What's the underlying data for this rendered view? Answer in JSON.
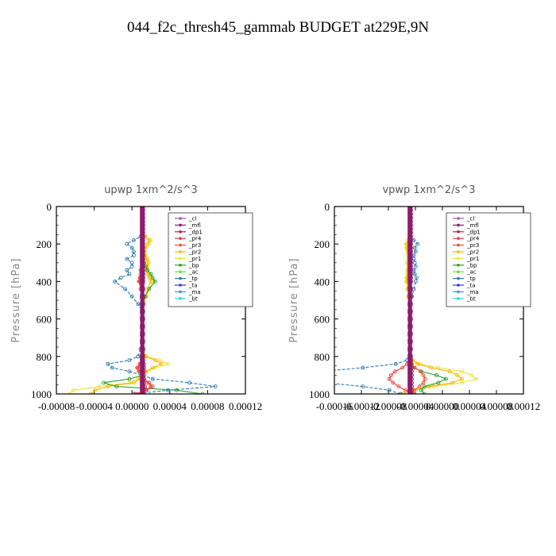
{
  "figure": {
    "title": "044_f2c_thresh45_gammab  BUDGET at229E,9N"
  },
  "series_styles": [
    {
      "name": "_cl",
      "color": "#9b59b6"
    },
    {
      "name": "_mfl",
      "color": "#8e1b6e"
    },
    {
      "name": "_dp1",
      "color": "#b0204a"
    },
    {
      "name": "_pr4",
      "color": "#e8404a"
    },
    {
      "name": "_pr3",
      "color": "#f05030"
    },
    {
      "name": "_pr2",
      "color": "#f5b800"
    },
    {
      "name": "_pr1",
      "color": "#f0e040"
    },
    {
      "name": "_bp",
      "color": "#2ca02c"
    },
    {
      "name": "_ac",
      "color": "#66dd44"
    },
    {
      "name": "_tp",
      "color": "#2a7ab0"
    },
    {
      "name": "_ta",
      "color": "#3a3ad0"
    },
    {
      "name": "_ma",
      "color": "#4a90c0"
    },
    {
      "name": "_bt",
      "color": "#22dddd"
    }
  ],
  "chart_data": [
    {
      "type": "line",
      "title": "upwp   1xm^2/s^3",
      "ylabel": "Pressure [hPa]",
      "xlabel": "",
      "ylim": [
        1000,
        0
      ],
      "xlim": [
        -0.0001,
        0.00012
      ],
      "yticks": [
        "0",
        "200",
        "400",
        "600",
        "800",
        "1000"
      ],
      "xticks": [
        "-0.00008",
        "-0.00004",
        "0.00000",
        "0.00004",
        "0.00008",
        "0.00012"
      ],
      "legend_position": "top-right",
      "y": [
        1000,
        980,
        960,
        940,
        920,
        900,
        880,
        860,
        840,
        820,
        800,
        760,
        720,
        680,
        640,
        600,
        560,
        520,
        480,
        440,
        400,
        380,
        360,
        340,
        320,
        300,
        280,
        260,
        240,
        220,
        200,
        180,
        160,
        140,
        120,
        100,
        80,
        60,
        40,
        20,
        0
      ],
      "series": [
        {
          "name": "_pr1",
          "values": [
            -8.5e-05,
            -8e-05,
            -5e-05,
            -1.5e-05,
            -5e-06,
            0.0,
            5e-06,
            1.5e-05,
            3e-05,
            2e-05,
            5e-06,
            2e-06,
            0.0,
            0.0,
            0.0,
            0.0,
            0.0,
            2e-06,
            5e-06,
            8e-06,
            1.2e-05,
            1e-05,
            8e-06,
            6e-06,
            6e-06,
            8e-06,
            6e-06,
            4e-06,
            3e-06,
            4e-06,
            8e-06,
            1e-05,
            4e-06,
            0.0,
            0.0,
            0.0,
            0.0,
            0.0,
            0.0,
            0.0,
            0.0
          ]
        },
        {
          "name": "_pr2",
          "values": [
            -6e-05,
            -5.5e-05,
            -4e-05,
            -1e-05,
            -3e-06,
            0.0,
            4e-06,
            1.2e-05,
            2.2e-05,
            1.5e-05,
            4e-06,
            0.0,
            0.0,
            0.0,
            0.0,
            0.0,
            0.0,
            0.0,
            4e-06,
            6e-06,
            1e-05,
            8e-06,
            6e-06,
            5e-06,
            5e-06,
            6e-06,
            5e-06,
            3e-06,
            2e-06,
            3e-06,
            6e-06,
            8e-06,
            3e-06,
            0.0,
            0.0,
            0.0,
            0.0,
            0.0,
            0.0,
            0.0,
            0.0
          ]
        },
        {
          "name": "_bp",
          "values": [
            7e-05,
            4e-05,
            -3e-05,
            -4.5e-05,
            -1.5e-05,
            0.0,
            0.0,
            0.0,
            0.0,
            0.0,
            0.0,
            0.0,
            0.0,
            0.0,
            0.0,
            0.0,
            0.0,
            0.0,
            3e-06,
            8e-06,
            1.5e-05,
            1.2e-05,
            1e-05,
            6e-06,
            4e-06,
            2e-06,
            0.0,
            0.0,
            0.0,
            0.0,
            0.0,
            0.0,
            0.0,
            0.0,
            0.0,
            0.0,
            0.0,
            0.0,
            0.0,
            0.0,
            0.0
          ]
        },
        {
          "name": "_tp",
          "values": [
            -1e-05,
            3e-05,
            8.5e-05,
            5.5e-05,
            1.2e-05,
            0.0,
            -1.5e-05,
            -3.5e-05,
            -4e-05,
            -1.5e-05,
            -5e-06,
            -2e-06,
            0.0,
            0.0,
            0.0,
            0.0,
            0.0,
            -5e-06,
            -1.2e-05,
            -2e-05,
            -3.2e-05,
            -2.5e-05,
            -1.5e-05,
            -1.8e-05,
            -1.2e-05,
            -1.2e-05,
            -1.8e-05,
            -1e-05,
            -1e-05,
            -1.2e-05,
            -1.8e-05,
            -1e-05,
            -2e-06,
            0.0,
            0.0,
            0.0,
            0.0,
            0.0,
            0.0,
            0.0,
            0.0
          ]
        },
        {
          "name": "_pr4",
          "values": [
            -8e-06,
            5e-06,
            1.2e-05,
            8e-06,
            2e-06,
            0.0,
            -4e-06,
            -6e-06,
            -3e-06,
            0.0,
            0.0,
            0.0,
            0.0,
            0.0,
            0.0,
            0.0,
            0.0,
            0.0,
            0.0,
            -2e-06,
            -4e-06,
            -3e-06,
            -2e-06,
            -2e-06,
            0.0,
            0.0,
            0.0,
            0.0,
            0.0,
            0.0,
            0.0,
            0.0,
            0.0,
            0.0,
            0.0,
            0.0,
            0.0,
            0.0,
            0.0,
            0.0,
            0.0
          ]
        },
        {
          "name": "_pr3",
          "values": [
            -6e-06,
            4e-06,
            1e-05,
            6e-06,
            2e-06,
            0.0,
            -3e-06,
            -5e-06,
            -2e-06,
            0.0,
            0.0,
            0.0,
            0.0,
            0.0,
            0.0,
            0.0,
            0.0,
            0.0,
            0.0,
            -2e-06,
            -3e-06,
            -2e-06,
            -2e-06,
            -1e-06,
            0.0,
            0.0,
            0.0,
            0.0,
            0.0,
            0.0,
            0.0,
            0.0,
            0.0,
            0.0,
            0.0,
            0.0,
            0.0,
            0.0,
            0.0,
            0.0,
            0.0
          ]
        },
        {
          "name": "_dp1",
          "values": [
            2e-06,
            2e-06,
            3e-06,
            2e-06,
            2e-06,
            2e-06,
            2e-06,
            2e-06,
            2e-06,
            1e-06,
            1e-06,
            1e-06,
            1e-06,
            1e-06,
            1e-06,
            1e-06,
            1e-06,
            1e-06,
            1e-06,
            1e-06,
            1e-06,
            1e-06,
            1e-06,
            1e-06,
            1e-06,
            1e-06,
            1e-06,
            1e-06,
            1e-06,
            1e-06,
            1e-06,
            1e-06,
            1e-06,
            1e-06,
            1e-06,
            1e-06,
            1e-06,
            1e-06,
            1e-06,
            1e-06,
            1e-06
          ]
        },
        {
          "name": "_mfl",
          "values": [
            0.0,
            0.0,
            0.0,
            0.0,
            0.0,
            0.0,
            0.0,
            0.0,
            0.0,
            0.0,
            0.0,
            0.0,
            0.0,
            0.0,
            0.0,
            0.0,
            0.0,
            0.0,
            0.0,
            0.0,
            0.0,
            0.0,
            0.0,
            0.0,
            0.0,
            0.0,
            0.0,
            0.0,
            0.0,
            0.0,
            0.0,
            0.0,
            0.0,
            0.0,
            0.0,
            0.0,
            0.0,
            0.0,
            0.0,
            0.0,
            0.0
          ]
        }
      ]
    },
    {
      "type": "line",
      "title": "vpwp   1xm^2/s^3",
      "ylabel": "Pressure [hPa]",
      "xlabel": "",
      "ylim": [
        1000,
        0
      ],
      "xlim": [
        -8e-05,
        0.00012
      ],
      "yticks": [
        "0",
        "200",
        "400",
        "600",
        "800",
        "1000"
      ],
      "xticks": [
        "-0.00016",
        "-0.00012",
        "-0.00008",
        "-0.00004",
        "0.00000",
        "0.00004",
        "0.00008",
        "0.00012"
      ],
      "legend_position": "top-right",
      "y": [
        1000,
        980,
        960,
        940,
        920,
        900,
        880,
        860,
        840,
        820,
        800,
        760,
        720,
        680,
        640,
        600,
        560,
        520,
        480,
        440,
        400,
        380,
        360,
        340,
        320,
        300,
        280,
        260,
        240,
        220,
        200,
        180,
        160,
        140,
        120,
        100,
        80,
        60,
        40,
        20,
        0
      ],
      "series": [
        {
          "name": "_pr1",
          "values": [
            -1e-05,
            5e-06,
            2.5e-05,
            5.5e-05,
            7e-05,
            6.5e-05,
            5.5e-05,
            3e-05,
            1e-05,
            3e-06,
            0.0,
            0.0,
            0.0,
            0.0,
            0.0,
            0.0,
            0.0,
            0.0,
            -2e-06,
            -3e-06,
            -4e-06,
            -4e-06,
            -3e-06,
            -3e-06,
            -2e-06,
            -3e-06,
            -2e-06,
            -2e-06,
            -3e-06,
            -4e-06,
            -4e-06,
            -2e-06,
            0.0,
            0.0,
            0.0,
            0.0,
            0.0,
            0.0,
            0.0,
            0.0,
            0.0
          ]
        },
        {
          "name": "_pr2",
          "values": [
            -8e-06,
            4e-06,
            2e-05,
            4.5e-05,
            5.5e-05,
            5e-05,
            4.2e-05,
            2.2e-05,
            8e-06,
            2e-06,
            0.0,
            0.0,
            0.0,
            0.0,
            0.0,
            0.0,
            0.0,
            0.0,
            -2e-06,
            -2e-06,
            -3e-06,
            -3e-06,
            -2e-06,
            -2e-06,
            -2e-06,
            -2e-06,
            -2e-06,
            -2e-06,
            -2e-06,
            -3e-06,
            -3e-06,
            -2e-06,
            0.0,
            0.0,
            0.0,
            0.0,
            0.0,
            0.0,
            0.0,
            0.0,
            0.0
          ]
        },
        {
          "name": "_bp",
          "values": [
            1.5e-05,
            1.2e-05,
            1.5e-05,
            3e-05,
            3.8e-05,
            2.8e-05,
            1.2e-05,
            4e-06,
            0.0,
            0.0,
            0.0,
            0.0,
            0.0,
            0.0,
            0.0,
            0.0,
            0.0,
            0.0,
            0.0,
            0.0,
            0.0,
            0.0,
            0.0,
            0.0,
            0.0,
            0.0,
            0.0,
            0.0,
            0.0,
            0.0,
            0.0,
            0.0,
            0.0,
            0.0,
            0.0,
            0.0,
            0.0,
            0.0,
            0.0,
            0.0,
            0.0
          ]
        },
        {
          "name": "_tp",
          "values": [
            -1e-05,
            -2.2e-05,
            -5e-05,
            -9e-05,
            -0.000115,
            -0.00012,
            -9.5e-05,
            -5e-05,
            -1.5e-05,
            -3e-06,
            0.0,
            0.0,
            0.0,
            0.0,
            0.0,
            0.0,
            0.0,
            0.0,
            2e-06,
            4e-06,
            6e-06,
            7e-06,
            5e-06,
            4e-06,
            6e-06,
            5e-06,
            4e-06,
            4e-06,
            6e-06,
            5e-06,
            8e-06,
            4e-06,
            1e-06,
            0.0,
            0.0,
            0.0,
            0.0,
            0.0,
            0.0,
            0.0,
            0.0
          ]
        },
        {
          "name": "_pr4",
          "values": [
            3e-06,
            -5e-06,
            -1.2e-05,
            -1.8e-05,
            -2.2e-05,
            -2e-05,
            -1.6e-05,
            -8e-06,
            -3e-06,
            0.0,
            0.0,
            0.0,
            0.0,
            0.0,
            0.0,
            0.0,
            0.0,
            0.0,
            0.0,
            0.0,
            0.0,
            0.0,
            0.0,
            0.0,
            0.0,
            0.0,
            0.0,
            0.0,
            0.0,
            0.0,
            0.0,
            0.0,
            0.0,
            0.0,
            0.0,
            0.0,
            0.0,
            0.0,
            0.0,
            0.0,
            0.0
          ]
        },
        {
          "name": "_pr3",
          "values": [
            2e-06,
            4e-06,
            1e-05,
            1.4e-05,
            1.6e-05,
            1.4e-05,
            1.1e-05,
            5e-06,
            2e-06,
            0.0,
            0.0,
            0.0,
            0.0,
            0.0,
            0.0,
            0.0,
            0.0,
            0.0,
            0.0,
            0.0,
            0.0,
            0.0,
            0.0,
            0.0,
            0.0,
            0.0,
            0.0,
            0.0,
            0.0,
            0.0,
            0.0,
            0.0,
            0.0,
            0.0,
            0.0,
            0.0,
            0.0,
            0.0,
            0.0,
            0.0,
            0.0
          ]
        },
        {
          "name": "_dp1",
          "values": [
            2e-06,
            2e-06,
            2e-06,
            2e-06,
            2e-06,
            2e-06,
            2e-06,
            2e-06,
            1e-06,
            1e-06,
            1e-06,
            1e-06,
            1e-06,
            1e-06,
            1e-06,
            1e-06,
            1e-06,
            1e-06,
            1e-06,
            1e-06,
            1e-06,
            1e-06,
            1e-06,
            1e-06,
            1e-06,
            1e-06,
            1e-06,
            1e-06,
            1e-06,
            1e-06,
            1e-06,
            1e-06,
            1e-06,
            1e-06,
            1e-06,
            1e-06,
            1e-06,
            1e-06,
            1e-06,
            1e-06,
            1e-06
          ]
        },
        {
          "name": "_mfl",
          "values": [
            0.0,
            0.0,
            0.0,
            0.0,
            0.0,
            0.0,
            0.0,
            0.0,
            0.0,
            0.0,
            0.0,
            0.0,
            0.0,
            0.0,
            0.0,
            0.0,
            0.0,
            0.0,
            0.0,
            0.0,
            0.0,
            0.0,
            0.0,
            0.0,
            0.0,
            0.0,
            0.0,
            0.0,
            0.0,
            0.0,
            0.0,
            0.0,
            0.0,
            0.0,
            0.0,
            0.0,
            0.0,
            0.0,
            0.0,
            0.0,
            0.0
          ]
        }
      ]
    }
  ]
}
